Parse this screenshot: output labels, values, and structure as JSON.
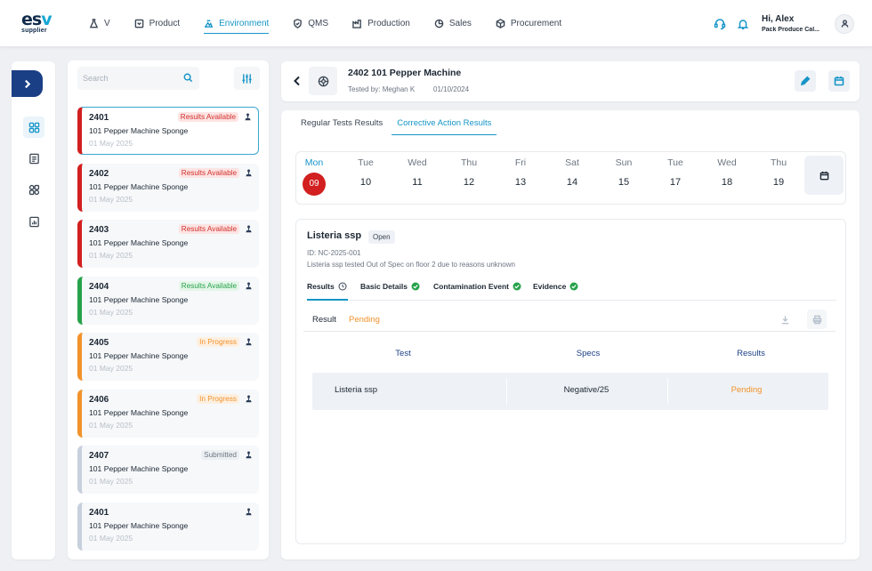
{
  "brand": {
    "logo_main_a": "es",
    "logo_main_b": "v",
    "logo_sub": "supplier"
  },
  "nav": [
    {
      "label": "V",
      "icon": "flask-icon"
    },
    {
      "label": "Product",
      "icon": "box-icon"
    },
    {
      "label": "Environment",
      "icon": "environment-icon",
      "active": true
    },
    {
      "label": "QMS",
      "icon": "shield-icon"
    },
    {
      "label": "Production",
      "icon": "factory-icon"
    },
    {
      "label": "Sales",
      "icon": "sales-icon"
    },
    {
      "label": "Procurement",
      "icon": "cube-icon"
    }
  ],
  "user": {
    "greeting": "Hi, Alex",
    "org": "Pack Produce Cal..."
  },
  "search": {
    "placeholder": "Search"
  },
  "cards": [
    {
      "id": "2401",
      "name": "101 Pepper Machine Sponge",
      "date": "01 May 2025",
      "status": "Results Available",
      "tone": "red"
    },
    {
      "id": "2402",
      "name": "101 Pepper Machine Sponge",
      "date": "01 May 2025",
      "status": "Results Available",
      "tone": "red"
    },
    {
      "id": "2403",
      "name": "101 Pepper Machine Sponge",
      "date": "01 May 2025",
      "status": "Results Available",
      "tone": "red"
    },
    {
      "id": "2404",
      "name": "101 Pepper Machine Sponge",
      "date": "01 May 2025",
      "status": "Results Available",
      "tone": "green"
    },
    {
      "id": "2405",
      "name": "101 Pepper Machine Sponge",
      "date": "01 May 2025",
      "status": "In Progress",
      "tone": "orange"
    },
    {
      "id": "2406",
      "name": "101 Pepper Machine Sponge",
      "date": "01 May 2025",
      "status": "In Progress",
      "tone": "orange"
    },
    {
      "id": "2407",
      "name": "101 Pepper Machine Sponge",
      "date": "01 May 2025",
      "status": "Submitted",
      "tone": "grey"
    },
    {
      "id": "2401",
      "name": "101 Pepper Machine Sponge",
      "date": "01 May 2025",
      "status": "",
      "tone": "grey"
    }
  ],
  "header": {
    "title": "2402 101 Pepper Machine",
    "tested_by": "Tested by: Meghan K",
    "date": "01/10/2024"
  },
  "tabs": [
    {
      "label": "Regular Tests Results"
    },
    {
      "label": "Corrective Action Results",
      "active": true
    }
  ],
  "days": [
    {
      "name": "Mon",
      "date": "09",
      "active": true
    },
    {
      "name": "Tue",
      "date": "10"
    },
    {
      "name": "Wed",
      "date": "11"
    },
    {
      "name": "Thu",
      "date": "12"
    },
    {
      "name": "Fri",
      "date": "13"
    },
    {
      "name": "Sat",
      "date": "14"
    },
    {
      "name": "Sun",
      "date": "15"
    },
    {
      "name": "Tue",
      "date": "17"
    },
    {
      "name": "Wed",
      "date": "18"
    },
    {
      "name": "Thu",
      "date": "19"
    }
  ],
  "detail": {
    "title": "Listeria ssp",
    "status": "Open",
    "id_line": "ID: NC-2025-001",
    "description": "Listeria ssp tested Out of Spec on floor 2 due to reasons unknown",
    "subtabs": [
      "Results",
      "Basic Details",
      "Contamination Event",
      "Evidence"
    ],
    "result_label": "Result",
    "result_value": "Pending",
    "table": {
      "headers": [
        "Test",
        "Specs",
        "Results"
      ],
      "rows": [
        {
          "test": "Listeria ssp",
          "specs": "Negative/25",
          "result": "Pending"
        }
      ]
    }
  },
  "colors": {
    "accent": "#1695c7",
    "navy": "#1b3f85",
    "red": "#d21f1f",
    "green": "#26a24a",
    "orange": "#f2922b",
    "grey": "#c7d0dc"
  }
}
